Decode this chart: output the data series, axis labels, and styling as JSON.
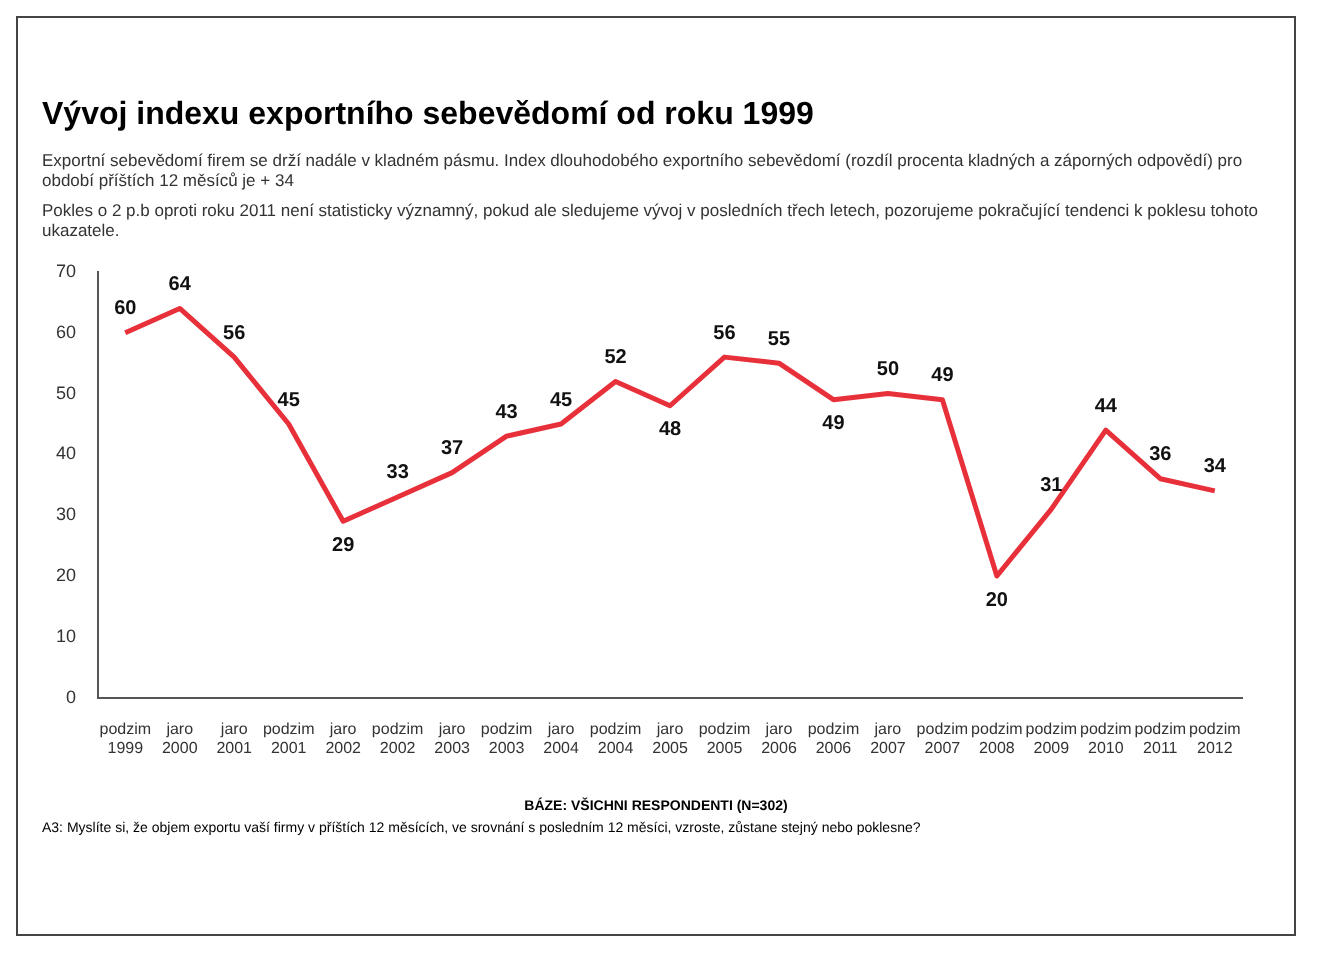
{
  "chart_data": {
    "type": "line",
    "title": "Vývoj indexu exportního sebevědomí od roku 1999",
    "subtitle": "Exportní sebevědomí firem se drží nadále v kladném pásmu. Index dlouhodobého exportního sebevědomí (rozdíl procenta kladných a záporných odpovědí) pro období příštích 12 měsíců je + 34",
    "annotations": [
      "Pokles o 2 p.b oproti roku 2011 není statisticky významný, pokud ale sledujeme vývoj v posledních třech letech, pozorujeme pokračující tendenci k poklesu tohoto ukazatele.",
      "BÁZE: VŠICHNI RESPONDENTI (N=302)",
      "A3: Myslíte si, že objem exportu vaší firmy v příštích 12 měsících, ve srovnání s posledním 12 měsíci, vzroste, zůstane stejný nebo poklesne?"
    ],
    "categories": [
      "podzim 1999",
      "jaro 2000",
      "jaro 2001",
      "podzim 2001",
      "jaro 2002",
      "podzim 2002",
      "jaro 2003",
      "podzim 2003",
      "jaro 2004",
      "podzim 2004",
      "jaro 2005",
      "podzim 2005",
      "jaro 2006",
      "podzim 2006",
      "jaro 2007",
      "podzim 2007",
      "podzim 2008",
      "podzim 2009",
      "podzim 2010",
      "podzim 2011",
      "podzim 2012"
    ],
    "series": [
      {
        "color": "#e8303a",
        "values": [
          60,
          64,
          56,
          45,
          29,
          33,
          37,
          43,
          45,
          52,
          48,
          56,
          55,
          49,
          50,
          49,
          20,
          31,
          44,
          36,
          34
        ]
      }
    ],
    "ylim": [
      0,
      70
    ],
    "yticks": [
      0,
      10,
      20,
      30,
      40,
      50,
      60,
      70
    ],
    "grid": false,
    "legend": false,
    "marker": "none",
    "line_style": "solid",
    "data_labels": true
  }
}
